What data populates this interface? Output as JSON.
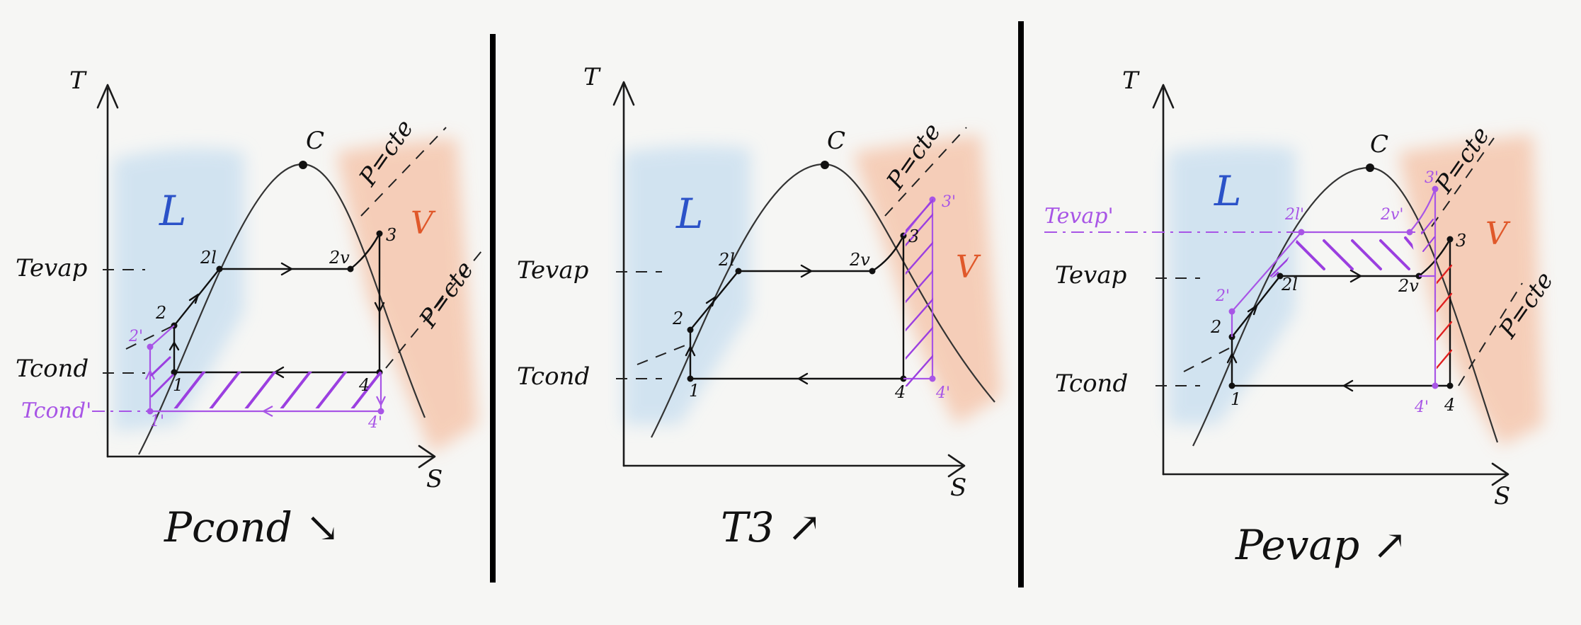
{
  "panels": [
    {
      "caption": "Pcond ↘",
      "axis_t": "T",
      "axis_s": "S",
      "critical": "C",
      "liquid": "L",
      "vapor": "V",
      "iso_upper": "P=cte",
      "iso_lower": "P=cte",
      "t_evap": "Tevap",
      "t_cond": "Tcond",
      "t_cond_new": "Tcond'",
      "pts": {
        "p1": "1",
        "p2": "2",
        "p2l": "2l",
        "p2v": "2v",
        "p3": "3",
        "p4": "4",
        "p1n": "1'",
        "p2n": "2'",
        "p4n": "4'"
      }
    },
    {
      "caption": "T3 ↗",
      "axis_t": "T",
      "axis_s": "S",
      "critical": "C",
      "liquid": "L",
      "vapor": "V",
      "iso_upper": "P=cte",
      "t_evap": "Tevap",
      "t_cond": "Tcond",
      "pts": {
        "p1": "1",
        "p2": "2",
        "p2l": "2l",
        "p2v": "2v",
        "p3": "3",
        "p4": "4",
        "p3n": "3'",
        "p4n": "4'"
      }
    },
    {
      "caption": "Pevap ↗",
      "axis_t": "T",
      "axis_s": "S",
      "critical": "C",
      "liquid": "L",
      "vapor": "V",
      "iso_upper": "P=cte",
      "iso_lower": "P=cte",
      "t_evap": "Tevap",
      "t_cond": "Tcond",
      "t_evap_new": "Tevap'",
      "pts": {
        "p1": "1",
        "p2": "2",
        "p2l": "2l",
        "p2v": "2v",
        "p3": "3",
        "p4": "4",
        "p2n": "2'",
        "p2ln": "2l'",
        "p2vn": "2v'",
        "p3n": "3'",
        "p4n": "4'"
      }
    }
  ],
  "colors": {
    "liquid": "#c9dff0",
    "vapor": "#f5c7ae",
    "highlight": "#a855e6",
    "hatch_red": "#e02020"
  }
}
